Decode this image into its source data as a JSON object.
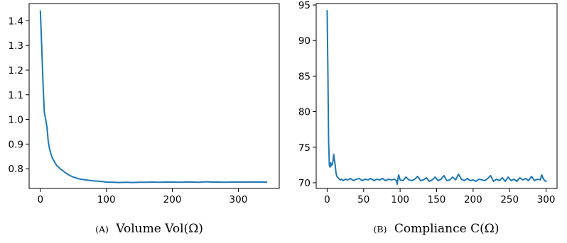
{
  "chart_data": [
    {
      "type": "line",
      "title": "",
      "xlabel": "",
      "ylabel": "",
      "xlim": [
        -17,
        362
      ],
      "ylim": [
        0.72,
        1.47
      ],
      "xticks": [
        0,
        100,
        200,
        300
      ],
      "yticks": [
        0.8,
        0.9,
        1.0,
        1.1,
        1.2,
        1.3,
        1.4
      ],
      "ytick_labels": [
        "0.8",
        "0.9",
        "1.0",
        "1.1",
        "1.2",
        "1.3",
        "1.4"
      ],
      "grid": false,
      "series": [
        {
          "color": "#1f77b4",
          "x": [
            0,
            2,
            4,
            6,
            8,
            10,
            12,
            14,
            16,
            18,
            20,
            22,
            25,
            28,
            30,
            35,
            40,
            45,
            50,
            55,
            60,
            70,
            80,
            90,
            100,
            110,
            120,
            130,
            140,
            150,
            160,
            170,
            180,
            190,
            200,
            210,
            220,
            230,
            240,
            250,
            260,
            270,
            280,
            290,
            300,
            310,
            320,
            330,
            343
          ],
          "y": [
            1.44,
            1.3,
            1.15,
            1.03,
            1.0,
            0.97,
            0.91,
            0.88,
            0.86,
            0.845,
            0.835,
            0.825,
            0.812,
            0.806,
            0.8,
            0.79,
            0.78,
            0.772,
            0.766,
            0.762,
            0.758,
            0.754,
            0.751,
            0.749,
            0.746,
            0.745,
            0.744,
            0.745,
            0.744,
            0.745,
            0.745,
            0.746,
            0.745,
            0.746,
            0.746,
            0.745,
            0.746,
            0.746,
            0.745,
            0.747,
            0.746,
            0.746,
            0.745,
            0.746,
            0.746,
            0.746,
            0.746,
            0.746,
            0.746
          ]
        }
      ],
      "caption": {
        "label": "(A)",
        "text": "Volume Vol(Ω)"
      }
    },
    {
      "type": "line",
      "title": "",
      "xlabel": "",
      "ylabel": "",
      "xlim": [
        -15,
        315
      ],
      "ylim": [
        69.2,
        95.2
      ],
      "xticks": [
        0,
        50,
        100,
        150,
        200,
        250,
        300
      ],
      "yticks": [
        70,
        75,
        80,
        85,
        90,
        95
      ],
      "ytick_labels": [
        "70",
        "75",
        "80",
        "85",
        "90",
        "95"
      ],
      "grid": false,
      "series": [
        {
          "color": "#1f77b4",
          "x": [
            0,
            1,
            2,
            3,
            4,
            5,
            6,
            7,
            8,
            9,
            10,
            11,
            12,
            13,
            14,
            16,
            18,
            20,
            22,
            25,
            28,
            32,
            36,
            40,
            44,
            48,
            52,
            56,
            60,
            64,
            68,
            72,
            76,
            80,
            84,
            88,
            92,
            95,
            96,
            97,
            98,
            100,
            104,
            108,
            112,
            116,
            120,
            124,
            128,
            132,
            136,
            140,
            144,
            148,
            152,
            156,
            160,
            164,
            168,
            172,
            176,
            180,
            184,
            188,
            192,
            196,
            200,
            204,
            208,
            212,
            216,
            220,
            224,
            228,
            232,
            236,
            240,
            244,
            248,
            252,
            256,
            260,
            264,
            268,
            272,
            276,
            280,
            284,
            288,
            292,
            294,
            296,
            298,
            300
          ],
          "y": [
            94.2,
            86.0,
            76.0,
            72.5,
            72.2,
            72.8,
            72.4,
            72.6,
            73.0,
            74.0,
            73.2,
            72.5,
            71.5,
            71.0,
            70.8,
            70.6,
            70.4,
            70.5,
            70.3,
            70.5,
            70.4,
            70.6,
            70.3,
            70.5,
            70.6,
            70.3,
            70.5,
            70.4,
            70.6,
            70.3,
            70.5,
            70.4,
            70.6,
            70.3,
            70.5,
            70.4,
            70.5,
            70.3,
            69.8,
            70.6,
            71.1,
            70.4,
            70.3,
            70.8,
            70.4,
            70.3,
            70.5,
            70.9,
            70.3,
            70.4,
            70.7,
            70.2,
            70.4,
            70.8,
            70.3,
            70.5,
            71.0,
            70.3,
            70.4,
            70.8,
            70.4,
            71.2,
            70.5,
            70.3,
            70.6,
            70.3,
            70.4,
            70.2,
            70.5,
            70.4,
            70.3,
            70.6,
            71.0,
            70.2,
            70.5,
            70.3,
            70.7,
            70.2,
            70.8,
            70.3,
            70.5,
            70.2,
            70.7,
            70.4,
            70.6,
            70.3,
            70.9,
            70.3,
            70.5,
            70.4,
            71.1,
            70.6,
            70.3,
            70.2
          ]
        }
      ],
      "caption": {
        "label": "(B)",
        "text": "Compliance C(Ω)"
      }
    }
  ]
}
